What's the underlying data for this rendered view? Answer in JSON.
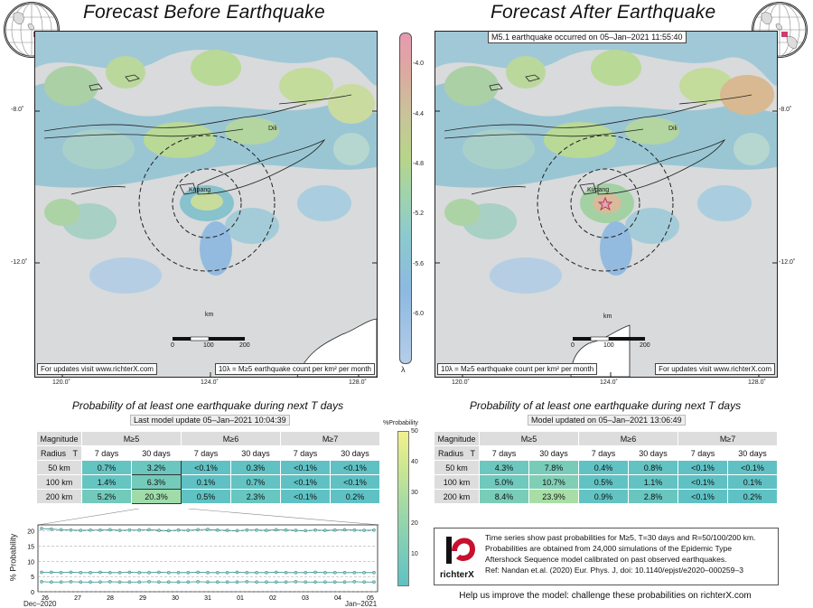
{
  "left_map": {
    "title": "Forecast Before Earthquake",
    "city_label": "Kupang",
    "dili_label": "Dili",
    "scale_unit": "km",
    "scale_ticks": [
      "0",
      "100",
      "200"
    ],
    "footnote_left": "For updates visit www.richterX.com",
    "footnote_right": "10λ = M≥5 earthquake count per km² per month",
    "lat_labels": [
      "-8.0˚",
      "-12.0˚"
    ],
    "lon_labels": [
      "120.0˚",
      "124.0˚",
      "128.0˚"
    ]
  },
  "right_map": {
    "title": "Forecast After Earthquake",
    "event_note": "M5.1 earthquake occurred on 05–Jan–2021 11:55:40",
    "city_label": "Kupang",
    "dili_label": "Dili",
    "scale_unit": "km",
    "scale_ticks": [
      "0",
      "100",
      "200"
    ],
    "footnote_left": "10λ = M≥5 earthquake count per km² per month",
    "footnote_right": "For updates visit www.richterX.com",
    "lat_labels": [
      "-8.0˚",
      "-12.0˚"
    ],
    "lon_labels": [
      "120.0˚",
      "124.0˚",
      "128.0˚"
    ]
  },
  "colorbar": {
    "ticks": [
      "-4.0",
      "-4.4",
      "-4.8",
      "-5.2",
      "-5.6",
      "-6.0"
    ],
    "label": "λ"
  },
  "left_table": {
    "subtitle": "Probability of at least one earthquake during next T days",
    "update": "Last model update 05–Jan–2021 10:04:39",
    "col_mag": "Magnitude",
    "col_radius": "Radius",
    "col_t": "T",
    "mags": [
      "M≥5",
      "M≥6",
      "M≥7"
    ],
    "periods": [
      "7 days",
      "30 days",
      "7 days",
      "30 days",
      "7 days",
      "30 days"
    ],
    "rows": [
      {
        "radius": "50 km",
        "vals": [
          "0.7%",
          "3.2%",
          "<0.1%",
          "0.3%",
          "<0.1%",
          "<0.1%"
        ]
      },
      {
        "radius": "100 km",
        "vals": [
          "1.4%",
          "6.3%",
          "0.1%",
          "0.7%",
          "<0.1%",
          "<0.1%"
        ]
      },
      {
        "radius": "200 km",
        "vals": [
          "5.2%",
          "20.3%",
          "0.5%",
          "2.3%",
          "<0.1%",
          "0.2%"
        ]
      }
    ]
  },
  "right_table": {
    "subtitle": "Probability of at least one earthquake during next T days",
    "update": "Model updated on 05–Jan–2021 13:06:49",
    "col_mag": "Magnitude",
    "col_radius": "Radius",
    "col_t": "T",
    "mags": [
      "M≥5",
      "M≥6",
      "M≥7"
    ],
    "periods": [
      "7 days",
      "30 days",
      "7 days",
      "30 days",
      "7 days",
      "30 days"
    ],
    "rows": [
      {
        "radius": "50 km",
        "vals": [
          "4.3%",
          "7.8%",
          "0.4%",
          "0.8%",
          "<0.1%",
          "<0.1%"
        ]
      },
      {
        "radius": "100 km",
        "vals": [
          "5.0%",
          "10.7%",
          "0.5%",
          "1.1%",
          "<0.1%",
          "0.1%"
        ]
      },
      {
        "radius": "200 km",
        "vals": [
          "8.4%",
          "23.9%",
          "0.9%",
          "2.8%",
          "<0.1%",
          "0.2%"
        ]
      }
    ]
  },
  "prob_colorbar": {
    "label": "%Probability",
    "ticks": [
      "50",
      "40",
      "30",
      "20",
      "10"
    ]
  },
  "chart_data": {
    "type": "line",
    "ylabel": "% Probability",
    "ylim": [
      0,
      22
    ],
    "yticks": [
      "0",
      "5",
      "10",
      "15",
      "20"
    ],
    "xticks": [
      "26",
      "27",
      "28",
      "29",
      "30",
      "31",
      "01",
      "02",
      "03",
      "04",
      "05"
    ],
    "x_month_left": "Dec–2020",
    "x_month_right": "Jan–2021",
    "series": [
      {
        "values": [
          20.8,
          20.6,
          20.4,
          20.3,
          20.2,
          20.3,
          20.3,
          20.4,
          20.2,
          20.3,
          20.3,
          20.4,
          20.2,
          20.1,
          20.3,
          20.2,
          20.4,
          20.5,
          20.3,
          20.2,
          20.1,
          20.3,
          20.3,
          20.2,
          20.4,
          20.3,
          20.2,
          20.1,
          20.3,
          20.2,
          20.3,
          20.4,
          20.3,
          20.2,
          20.3
        ]
      },
      {
        "values": [
          6.4,
          6.4,
          6.3,
          6.4,
          6.3,
          6.3,
          6.4,
          6.3,
          6.3,
          6.4,
          6.3,
          6.3,
          6.4,
          6.3,
          6.3,
          6.3,
          6.4,
          6.3,
          6.3,
          6.3,
          6.4,
          6.3,
          6.3,
          6.3,
          6.4,
          6.3,
          6.3,
          6.3,
          6.4,
          6.3,
          6.3,
          6.3,
          6.3,
          6.3,
          6.3
        ]
      },
      {
        "values": [
          3.3,
          3.2,
          3.2,
          3.3,
          3.2,
          3.2,
          3.2,
          3.3,
          3.2,
          3.2,
          3.2,
          3.3,
          3.2,
          3.2,
          3.2,
          3.2,
          3.3,
          3.2,
          3.2,
          3.2,
          3.2,
          3.3,
          3.2,
          3.2,
          3.2,
          3.2,
          3.3,
          3.2,
          3.2,
          3.2,
          3.2,
          3.2,
          3.3,
          3.2,
          3.2
        ]
      }
    ]
  },
  "info": {
    "logo_text": "richterX",
    "lines": [
      "Time series show past probabilities for M≥5, T=30 days and R=50/100/200 km.",
      "Probabilities are obtained from 24,000 simulations of the Epidemic Type",
      "Aftershock Sequence model calibrated on past observed earthquakes.",
      "Ref: Nandan et.al. (2020) Eur. Phys. J, doi: 10.1140/epjst/e2020–000259–3"
    ],
    "footer": "Help us improve the model: challenge these probabilities on richterX.com"
  }
}
